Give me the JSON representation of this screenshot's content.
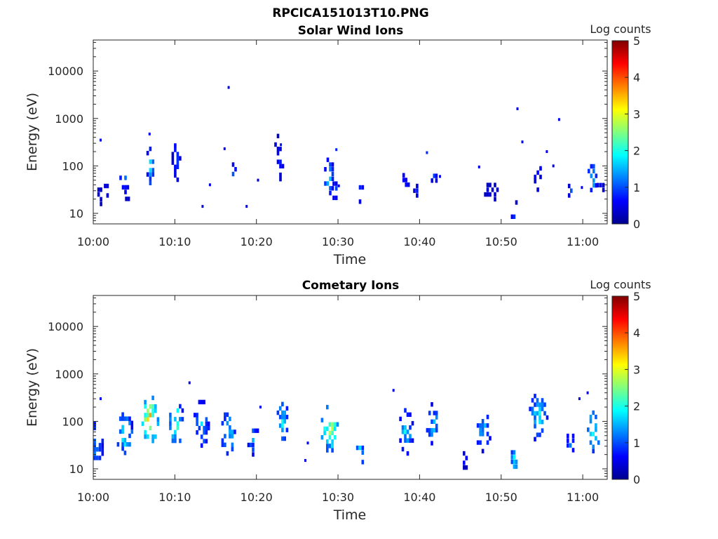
{
  "figure": {
    "title": "RPCICA151013T10.PNG"
  },
  "colors": {
    "colormap": [
      "#00008f",
      "#0000ff",
      "#0080ff",
      "#00ffff",
      "#80ff80",
      "#ffff00",
      "#ff8000",
      "#ff0000",
      "#800000"
    ],
    "axis": "#262626",
    "background": "#ffffff"
  },
  "chart_data": [
    {
      "type": "heatmap",
      "title": "Solar Wind Ions",
      "xlabel": "Time",
      "ylabel": "Energy (eV)",
      "x_ticks": [
        "10:00",
        "10:10",
        "10:20",
        "10:30",
        "10:40",
        "10:50",
        "11:00"
      ],
      "x_range_min": [
        0,
        63
      ],
      "y_scale": "log",
      "y_ticks": [
        "10",
        "100",
        "1000",
        "10000"
      ],
      "y_range_eV": [
        6,
        45000
      ],
      "colorbar": {
        "label": "Log counts",
        "ticks": [
          "0",
          "1",
          "2",
          "3",
          "4",
          "5"
        ],
        "range": [
          0,
          5
        ]
      },
      "grid": false,
      "clusters": [
        {
          "t": 0.8,
          "e": 25,
          "w": 0.3,
          "spread": 0.25,
          "v": 0.6
        },
        {
          "t": 1.6,
          "e": 30,
          "w": 0.3,
          "spread": 0.15,
          "v": 0.8
        },
        {
          "t": 3.8,
          "e": 50,
          "w": 0.6,
          "spread": 0.3,
          "v": 1.3
        },
        {
          "t": 4.2,
          "e": 18,
          "w": 0.3,
          "spread": 0.2,
          "v": 0.5
        },
        {
          "t": 7.0,
          "e": 90,
          "w": 0.5,
          "spread": 0.45,
          "v": 1.8
        },
        {
          "t": 10.2,
          "e": 130,
          "w": 0.6,
          "spread": 0.45,
          "v": 1.0
        },
        {
          "t": 17.3,
          "e": 60,
          "w": 0.3,
          "spread": 0.3,
          "v": 1.5
        },
        {
          "t": 22.8,
          "e": 150,
          "w": 0.6,
          "spread": 0.5,
          "v": 0.9
        },
        {
          "t": 28.9,
          "e": 60,
          "w": 0.6,
          "spread": 0.4,
          "v": 1.7
        },
        {
          "t": 29.8,
          "e": 30,
          "w": 0.8,
          "spread": 0.2,
          "v": 1.0
        },
        {
          "t": 32.7,
          "e": 28,
          "w": 0.5,
          "spread": 0.25,
          "v": 1.1
        },
        {
          "t": 38.2,
          "e": 45,
          "w": 0.6,
          "spread": 0.2,
          "v": 0.8
        },
        {
          "t": 39.7,
          "e": 30,
          "w": 0.5,
          "spread": 0.15,
          "v": 0.7
        },
        {
          "t": 41.8,
          "e": 55,
          "w": 0.4,
          "spread": 0.2,
          "v": 1.0
        },
        {
          "t": 48.8,
          "e": 28,
          "w": 0.9,
          "spread": 0.2,
          "v": 0.6
        },
        {
          "t": 51.6,
          "e": 12,
          "w": 0.4,
          "spread": 0.3,
          "v": 1.2
        },
        {
          "t": 54.5,
          "e": 80,
          "w": 0.5,
          "spread": 0.45,
          "v": 0.9
        },
        {
          "t": 58.6,
          "e": 30,
          "w": 0.4,
          "spread": 0.15,
          "v": 1.0
        },
        {
          "t": 61.2,
          "e": 55,
          "w": 0.6,
          "spread": 0.3,
          "v": 1.9
        },
        {
          "t": 62.2,
          "e": 35,
          "w": 0.5,
          "spread": 0.2,
          "v": 1.0
        }
      ],
      "points": [
        {
          "t": 0.9,
          "e": 350,
          "v": 0.5
        },
        {
          "t": 16.6,
          "e": 4500,
          "v": 0.5
        },
        {
          "t": 16.1,
          "e": 230,
          "v": 0.6
        },
        {
          "t": 52.0,
          "e": 1600,
          "v": 0.6
        },
        {
          "t": 57.1,
          "e": 950,
          "v": 0.5
        },
        {
          "t": 52.6,
          "e": 320,
          "v": 0.5
        },
        {
          "t": 29.8,
          "e": 220,
          "v": 0.8
        },
        {
          "t": 40.9,
          "e": 190,
          "v": 0.8
        },
        {
          "t": 13.4,
          "e": 14,
          "v": 0.4
        },
        {
          "t": 18.8,
          "e": 14,
          "v": 0.4
        },
        {
          "t": 20.2,
          "e": 50,
          "v": 0.4
        },
        {
          "t": 14.3,
          "e": 40,
          "v": 0.5
        },
        {
          "t": 6.9,
          "e": 470,
          "v": 0.6
        },
        {
          "t": 30.1,
          "e": 38,
          "v": 0.6
        },
        {
          "t": 47.3,
          "e": 95,
          "v": 0.5
        },
        {
          "t": 55.6,
          "e": 200,
          "v": 0.6
        },
        {
          "t": 56.4,
          "e": 100,
          "v": 0.4
        },
        {
          "t": 59.9,
          "e": 35,
          "v": 0.5
        },
        {
          "t": 42.5,
          "e": 60,
          "v": 0.5
        },
        {
          "t": 23.0,
          "e": 280,
          "v": 0.7
        }
      ]
    },
    {
      "type": "heatmap",
      "title": "Cometary Ions",
      "xlabel": "Time",
      "ylabel": "Energy (eV)",
      "x_ticks": [
        "10:00",
        "10:10",
        "10:20",
        "10:30",
        "10:40",
        "10:50",
        "11:00"
      ],
      "x_range_min": [
        0,
        63
      ],
      "y_scale": "log",
      "y_ticks": [
        "10",
        "100",
        "1000",
        "10000"
      ],
      "y_range_eV": [
        6,
        45000
      ],
      "colorbar": {
        "label": "Log counts",
        "ticks": [
          "0",
          "1",
          "2",
          "3",
          "4",
          "5"
        ],
        "range": [
          0,
          5
        ]
      },
      "grid": false,
      "clusters": [
        {
          "t": 0.5,
          "e": 35,
          "w": 0.8,
          "spread": 0.45,
          "v": 1.8
        },
        {
          "t": 3.9,
          "e": 55,
          "w": 1.0,
          "spread": 0.45,
          "v": 2.2
        },
        {
          "t": 7.0,
          "e": 110,
          "w": 1.1,
          "spread": 0.5,
          "v": 3.5
        },
        {
          "t": 10.2,
          "e": 90,
          "w": 0.9,
          "spread": 0.5,
          "v": 2.6
        },
        {
          "t": 13.3,
          "e": 80,
          "w": 1.0,
          "spread": 0.55,
          "v": 1.6
        },
        {
          "t": 16.6,
          "e": 60,
          "w": 0.9,
          "spread": 0.5,
          "v": 2.0
        },
        {
          "t": 19.6,
          "e": 45,
          "w": 0.7,
          "spread": 0.4,
          "v": 1.4
        },
        {
          "t": 23.2,
          "e": 100,
          "w": 0.7,
          "spread": 0.5,
          "v": 2.0
        },
        {
          "t": 29.0,
          "e": 70,
          "w": 1.1,
          "spread": 0.5,
          "v": 3.0
        },
        {
          "t": 32.7,
          "e": 22,
          "w": 0.5,
          "spread": 0.35,
          "v": 1.8
        },
        {
          "t": 38.4,
          "e": 60,
          "w": 0.9,
          "spread": 0.5,
          "v": 1.9
        },
        {
          "t": 41.8,
          "e": 80,
          "w": 1.0,
          "spread": 0.5,
          "v": 1.6
        },
        {
          "t": 45.6,
          "e": 15,
          "w": 0.3,
          "spread": 0.2,
          "v": 0.8
        },
        {
          "t": 47.9,
          "e": 60,
          "w": 0.9,
          "spread": 0.45,
          "v": 1.7
        },
        {
          "t": 51.6,
          "e": 14,
          "w": 0.4,
          "spread": 0.35,
          "v": 2.2
        },
        {
          "t": 54.6,
          "e": 120,
          "w": 1.2,
          "spread": 0.5,
          "v": 2.0
        },
        {
          "t": 58.5,
          "e": 35,
          "w": 0.5,
          "spread": 0.3,
          "v": 1.5
        },
        {
          "t": 61.3,
          "e": 60,
          "w": 0.8,
          "spread": 0.45,
          "v": 2.6
        }
      ],
      "points": [
        {
          "t": 11.8,
          "e": 650,
          "v": 0.5
        },
        {
          "t": 0.9,
          "e": 300,
          "v": 0.6
        },
        {
          "t": 26.0,
          "e": 15,
          "v": 0.5
        },
        {
          "t": 26.3,
          "e": 35,
          "v": 0.6
        },
        {
          "t": 59.6,
          "e": 300,
          "v": 0.5
        },
        {
          "t": 60.6,
          "e": 400,
          "v": 0.6
        },
        {
          "t": 36.8,
          "e": 450,
          "v": 0.5
        },
        {
          "t": 20.5,
          "e": 200,
          "v": 0.5
        }
      ]
    }
  ]
}
